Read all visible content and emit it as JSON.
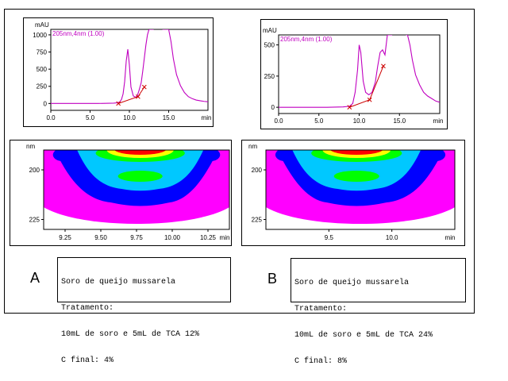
{
  "panels": [
    {
      "letter": "A",
      "info": [
        "Soro de queijo mussarela",
        "Tratamento:",
        "10mL de soro e 5mL de TCA 12%",
        "C final: 4%"
      ]
    },
    {
      "letter": "B",
      "info": [
        "Soro de queijo mussarela",
        "Tratamento:",
        "10mL de soro e 5mL de TCA 24%",
        "C final: 8%"
      ]
    }
  ],
  "colors": {
    "trace": "#c000c0",
    "integration": "#cc0000",
    "contour_bg": "#ff00ff",
    "contour_levels": [
      "#ff00ff",
      "#0000ff",
      "#00c8ff",
      "#00ff00",
      "#ffff00",
      "#ff0000"
    ]
  },
  "chart_data": [
    {
      "type": "line",
      "id": "chromatogram-A",
      "trace_label": "205nm,4nm (1.00)",
      "ylabel": "mAU",
      "xlabel": "min",
      "xlim": [
        0,
        20
      ],
      "ylim": [
        -100,
        1080
      ],
      "x_ticks": [
        "0.0",
        "5.0",
        "10.0",
        "15.0"
      ],
      "x_tick_values": [
        0,
        5,
        10,
        15
      ],
      "y_ticks": [
        "0",
        "250",
        "500",
        "750",
        "1000"
      ],
      "y_tick_values": [
        0,
        250,
        500,
        750,
        1000
      ],
      "series": [
        {
          "x": [
            0,
            2,
            4,
            6,
            8,
            8.5,
            8.8,
            9.0,
            9.2,
            9.4,
            9.6,
            9.8,
            10.0,
            10.2,
            10.5,
            10.8,
            11.0,
            11.2,
            11.5,
            11.7,
            11.9,
            12.1,
            12.3,
            12.5,
            12.7,
            12.9,
            13.1
          ],
          "y": [
            0,
            0,
            0,
            0,
            5,
            10,
            25,
            60,
            140,
            320,
            620,
            790,
            560,
            240,
            110,
            90,
            110,
            180,
            300,
            470,
            660,
            850,
            1000,
            1080,
            1080,
            1080,
            1080
          ]
        },
        {
          "x": [
            14.2,
            14.4,
            14.6,
            14.8,
            15.0,
            15.3,
            15.6,
            16.0,
            16.5,
            17.0,
            17.5,
            18.0,
            18.5,
            19.0,
            19.5,
            20.0
          ],
          "y": [
            1080,
            1080,
            1080,
            1080,
            1080,
            900,
            650,
            420,
            260,
            160,
            100,
            70,
            50,
            40,
            30,
            25
          ]
        }
      ],
      "integration": {
        "x": [
          8.6,
          11.1,
          11.9
        ],
        "y": [
          0,
          100,
          240
        ]
      }
    },
    {
      "type": "line",
      "id": "chromatogram-B",
      "trace_label": "205nm,4nm (1.00)",
      "ylabel": "mAU",
      "xlabel": "min",
      "xlim": [
        0,
        20
      ],
      "ylim": [
        -50,
        580
      ],
      "x_ticks": [
        "0.0",
        "5.0",
        "10.0",
        "15.0"
      ],
      "x_tick_values": [
        0,
        5,
        10,
        15
      ],
      "y_ticks": [
        "0",
        "250",
        "500"
      ],
      "y_tick_values": [
        0,
        250,
        500
      ],
      "series": [
        {
          "x": [
            0,
            2,
            4,
            6,
            8,
            8.8,
            9.2,
            9.5,
            9.8,
            10.0,
            10.2,
            10.5,
            10.8,
            11.2,
            11.6,
            12.0,
            12.3,
            12.6,
            12.9,
            13.2,
            13.5,
            13.8,
            14.1
          ],
          "y": [
            0,
            0,
            0,
            0,
            3,
            8,
            30,
            120,
            300,
            500,
            440,
            210,
            120,
            100,
            120,
            200,
            330,
            440,
            460,
            420,
            580,
            580,
            580
          ]
        },
        {
          "x": [
            15.8,
            16.0,
            16.3,
            16.6,
            17.0,
            17.5,
            18.0,
            18.5,
            19.0,
            19.5,
            20.0
          ],
          "y": [
            580,
            580,
            500,
            380,
            260,
            180,
            120,
            90,
            70,
            50,
            40
          ]
        }
      ],
      "integration": {
        "x": [
          8.8,
          11.3,
          13.0
        ],
        "y": [
          0,
          60,
          330
        ]
      }
    },
    {
      "type": "heatmap",
      "id": "contour-A",
      "ylabel": "nm",
      "xlabel": "min",
      "xlim": [
        9.1,
        10.4
      ],
      "ylim": [
        190,
        230
      ],
      "x_ticks": [
        "9.25",
        "9.50",
        "9.75",
        "10.00",
        "10.25"
      ],
      "x_tick_values": [
        9.25,
        9.5,
        9.75,
        10.0,
        10.25
      ],
      "y_ticks": [
        "200",
        "225"
      ],
      "y_tick_values": [
        200,
        225
      ]
    },
    {
      "type": "heatmap",
      "id": "contour-B",
      "ylabel": "nm",
      "xlabel": "min",
      "xlim": [
        9.0,
        10.5
      ],
      "ylim": [
        190,
        230
      ],
      "x_ticks": [
        "9.5",
        "10.0"
      ],
      "x_tick_values": [
        9.5,
        10.0
      ],
      "y_ticks": [
        "200",
        "225"
      ],
      "y_tick_values": [
        200,
        225
      ]
    }
  ]
}
